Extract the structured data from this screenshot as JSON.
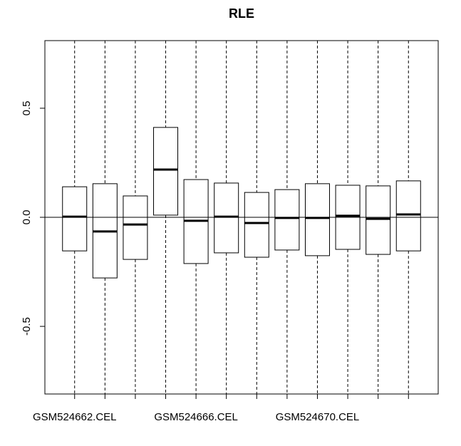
{
  "chart_data": {
    "type": "box",
    "title": "RLE",
    "categories": [
      "GSM524662.CEL",
      null,
      null,
      null,
      "GSM524666.CEL",
      null,
      null,
      null,
      "GSM524670.CEL",
      null,
      null,
      null
    ],
    "q1": [
      -0.154,
      -0.278,
      -0.193,
      0.01,
      -0.212,
      -0.163,
      -0.183,
      -0.15,
      -0.176,
      -0.147,
      -0.17,
      -0.154
    ],
    "median": [
      0.003,
      -0.065,
      -0.033,
      0.219,
      -0.016,
      0.003,
      -0.026,
      -0.003,
      -0.003,
      0.007,
      -0.007,
      0.013
    ],
    "q3": [
      0.14,
      0.154,
      0.098,
      0.412,
      0.173,
      0.157,
      0.114,
      0.127,
      0.154,
      0.147,
      0.144,
      0.167
    ],
    "ylim": [
      -0.81,
      0.81
    ],
    "yticks": [
      -0.5,
      {
        "value": 0,
        "label": "0.0"
      },
      0.5
    ],
    "hline": 0
  }
}
